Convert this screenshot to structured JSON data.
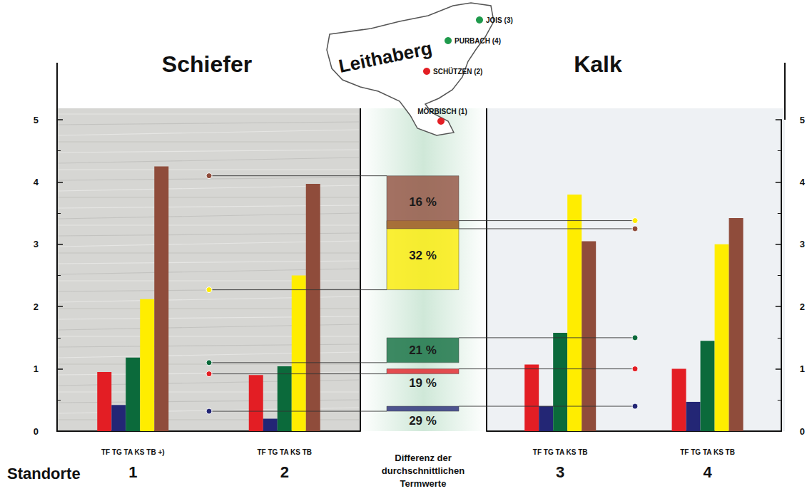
{
  "chart_data": {
    "type": "bar",
    "ylim": [
      0,
      5
    ],
    "yticks": [
      0,
      1,
      2,
      3,
      4,
      5
    ],
    "x_title": "Standorte",
    "panels": [
      {
        "title": "Schiefer",
        "categories": [
          "1",
          "2"
        ],
        "category_labels": [
          "TF TG TA KS TB +)",
          "TF TG TA KS TB"
        ],
        "series": [
          {
            "name": "TF",
            "color": "#e31e24",
            "values": [
              0.95,
              0.9
            ]
          },
          {
            "name": "TG",
            "color": "#232675",
            "values": [
              0.42,
              0.2
            ]
          },
          {
            "name": "TA",
            "color": "#0b6a3b",
            "values": [
              1.18,
              1.04
            ]
          },
          {
            "name": "KS",
            "color": "#ffed00",
            "values": [
              2.12,
              2.5
            ]
          },
          {
            "name": "TB",
            "color": "#8f4c3b",
            "values": [
              4.25,
              3.97
            ]
          }
        ],
        "means": [
          0.92,
          0.32,
          1.1,
          2.27,
          4.1
        ]
      },
      {
        "title": "Kalk",
        "categories": [
          "3",
          "4"
        ],
        "category_labels": [
          "TF TG TA KS TB",
          "TF TG TA KS TB"
        ],
        "series": [
          {
            "name": "TF",
            "color": "#e31e24",
            "values": [
              1.07,
              1.0
            ]
          },
          {
            "name": "TG",
            "color": "#232675",
            "values": [
              0.4,
              0.47
            ]
          },
          {
            "name": "TA",
            "color": "#0b6a3b",
            "values": [
              1.58,
              1.45
            ]
          },
          {
            "name": "KS",
            "color": "#ffed00",
            "values": [
              3.8,
              3.0
            ]
          },
          {
            "name": "TB",
            "color": "#8f4c3b",
            "values": [
              3.05,
              3.42
            ]
          }
        ],
        "means": [
          1.0,
          0.4,
          1.5,
          3.38,
          3.25
        ]
      }
    ],
    "differences": {
      "title": "Differenz der durchschnittlichen Termwerte",
      "labels": [
        "19 %",
        "29 %",
        "21 %",
        "32 %",
        "16 %"
      ]
    },
    "map": {
      "title": "Leithaberg",
      "places": [
        {
          "label": "JOIS (3)",
          "color": "#1f9a4c"
        },
        {
          "label": "PURBACH (4)",
          "color": "#1f9a4c"
        },
        {
          "label": "SCHÜTZEN (2)",
          "color": "#e31e24"
        },
        {
          "label": "MÖRBISCH (1)",
          "color": "#e31e24"
        }
      ]
    }
  }
}
